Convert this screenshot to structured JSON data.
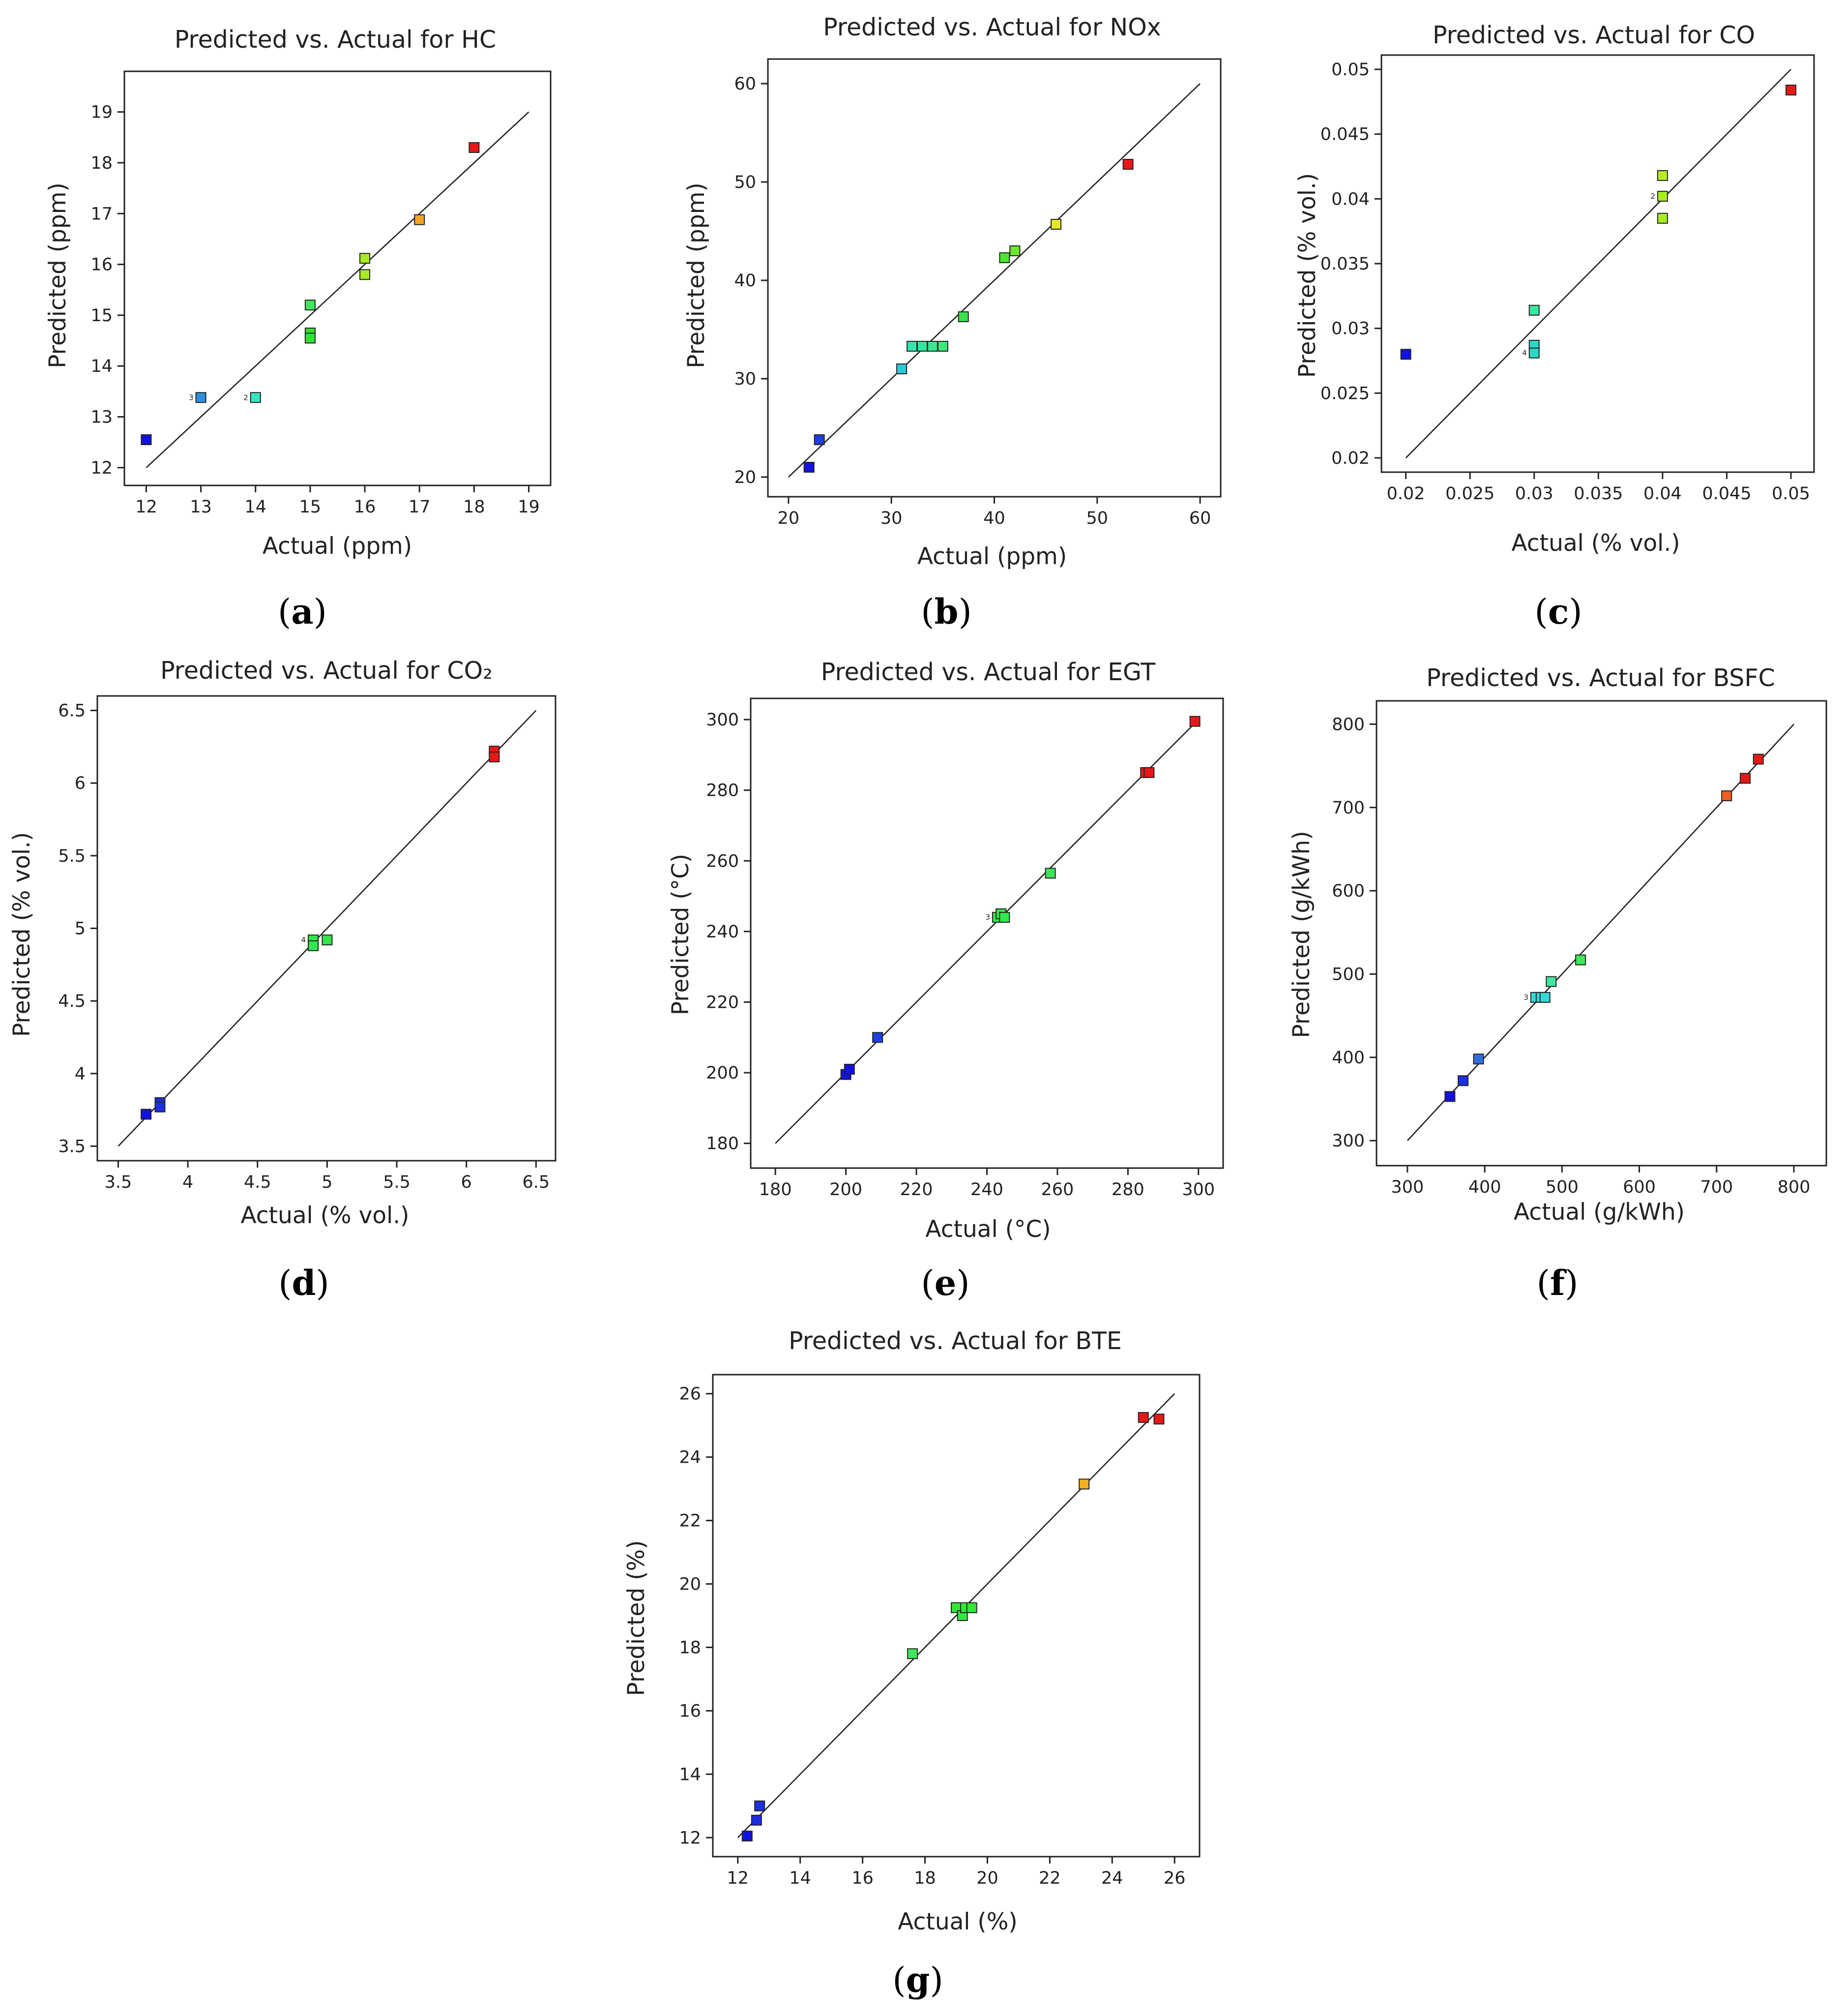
{
  "chart_data": [
    {
      "id": "a",
      "type": "scatter",
      "title": "Predicted vs. Actual for HC",
      "xlabel": "Actual (ppm)",
      "ylabel": "Predicted (ppm)",
      "panel_letter": "a",
      "xlim": [
        11.6,
        19.4
      ],
      "ylim": [
        11.65,
        19.8
      ],
      "xticks": [
        12,
        13,
        14,
        15,
        16,
        17,
        18,
        19
      ],
      "yticks": [
        12,
        13,
        14,
        15,
        16,
        17,
        18,
        19
      ],
      "xtick_labels": [
        "12",
        "13",
        "14",
        "15",
        "16",
        "17",
        "18",
        "19"
      ],
      "ytick_labels": [
        "12",
        "13",
        "14",
        "15",
        "16",
        "17",
        "18",
        "19"
      ],
      "reference_line": [
        12,
        19
      ],
      "points": [
        {
          "x": 12,
          "y": 12.55,
          "color": "#1212e0"
        },
        {
          "x": 13,
          "y": 13.38,
          "color": "#2f8ee0",
          "annotation": "3"
        },
        {
          "x": 14,
          "y": 13.38,
          "color": "#33e6c0",
          "annotation": "2"
        },
        {
          "x": 15,
          "y": 15.2,
          "color": "#3fe65a"
        },
        {
          "x": 15,
          "y": 14.65,
          "color": "#2fe32f"
        },
        {
          "x": 15,
          "y": 14.55,
          "color": "#2fe32f"
        },
        {
          "x": 16,
          "y": 16.12,
          "color": "#a8ec22"
        },
        {
          "x": 16,
          "y": 15.8,
          "color": "#a8ec22"
        },
        {
          "x": 17,
          "y": 16.88,
          "color": "#f2a521"
        },
        {
          "x": 18,
          "y": 18.3,
          "color": "#e81818"
        }
      ]
    },
    {
      "id": "b",
      "type": "scatter",
      "title": "Predicted vs. Actual for NOx",
      "xlabel": "Actual (ppm)",
      "ylabel": "Predicted (ppm)",
      "panel_letter": "b",
      "xlim": [
        18,
        62
      ],
      "ylim": [
        18,
        62.5
      ],
      "xticks": [
        20,
        30,
        40,
        50,
        60
      ],
      "yticks": [
        20,
        30,
        40,
        50,
        60
      ],
      "xtick_labels": [
        "20",
        "30",
        "40",
        "50",
        "60"
      ],
      "ytick_labels": [
        "20",
        "30",
        "40",
        "50",
        "60"
      ],
      "reference_line": [
        20,
        60
      ],
      "points": [
        {
          "x": 22,
          "y": 21,
          "color": "#1212e0"
        },
        {
          "x": 23,
          "y": 23.8,
          "color": "#1d3fe0"
        },
        {
          "x": 31,
          "y": 31,
          "color": "#2bc8d8"
        },
        {
          "x": 32,
          "y": 33.3,
          "color": "#33e6b0"
        },
        {
          "x": 33,
          "y": 33.3,
          "color": "#33e6a0"
        },
        {
          "x": 34,
          "y": 33.3,
          "color": "#3ae690"
        },
        {
          "x": 35,
          "y": 33.3,
          "color": "#3fe67a"
        },
        {
          "x": 37,
          "y": 36.3,
          "color": "#38e34a"
        },
        {
          "x": 41,
          "y": 42.3,
          "color": "#4ce632"
        },
        {
          "x": 42,
          "y": 43,
          "color": "#6ee62a"
        },
        {
          "x": 46,
          "y": 45.7,
          "color": "#e2e822"
        },
        {
          "x": 53,
          "y": 51.8,
          "color": "#e81818"
        }
      ]
    },
    {
      "id": "c",
      "type": "scatter",
      "title": "Predicted vs. Actual for CO",
      "xlabel": "Actual (% vol.)",
      "ylabel": "Predicted (% vol.)",
      "panel_letter": "c",
      "xlim": [
        0.0181,
        0.0518
      ],
      "ylim": [
        0.0189,
        0.0511
      ],
      "xticks": [
        0.02,
        0.025,
        0.03,
        0.035,
        0.04,
        0.045,
        0.05
      ],
      "yticks": [
        0.02,
        0.025,
        0.03,
        0.035,
        0.04,
        0.045,
        0.05
      ],
      "xtick_labels": [
        "0.02",
        "0.025",
        "0.03",
        "0.035",
        "0.04",
        "0.045",
        "0.05"
      ],
      "ytick_labels": [
        "0.02",
        "0.025",
        "0.03",
        "0.035",
        "0.04",
        "0.045",
        "0.05"
      ],
      "reference_line": [
        0.02,
        0.05
      ],
      "points": [
        {
          "x": 0.02,
          "y": 0.028,
          "color": "#1212e0"
        },
        {
          "x": 0.03,
          "y": 0.0314,
          "color": "#3be6a0"
        },
        {
          "x": 0.03,
          "y": 0.0287,
          "color": "#2bd8c8"
        },
        {
          "x": 0.03,
          "y": 0.0281,
          "color": "#2bd8c8",
          "annotation": "4"
        },
        {
          "x": 0.04,
          "y": 0.0418,
          "color": "#b8ec22"
        },
        {
          "x": 0.04,
          "y": 0.0402,
          "color": "#a8ec22",
          "annotation": "2"
        },
        {
          "x": 0.04,
          "y": 0.0385,
          "color": "#a8ec22"
        },
        {
          "x": 0.05,
          "y": 0.0484,
          "color": "#e81818"
        }
      ]
    },
    {
      "id": "d",
      "type": "scatter",
      "title": "Predicted vs. Actual for CO₂",
      "xlabel": "Actual (% vol.)",
      "ylabel": "Predicted (% vol.)",
      "panel_letter": "d",
      "xlim": [
        3.35,
        6.64
      ],
      "ylim": [
        3.4,
        6.6
      ],
      "xticks": [
        3.5,
        4,
        4.5,
        5,
        5.5,
        6,
        6.5
      ],
      "yticks": [
        3.5,
        4,
        4.5,
        5,
        5.5,
        6,
        6.5
      ],
      "xtick_labels": [
        "3.5",
        "4",
        "4.5",
        "5",
        "5.5",
        "6",
        "6.5"
      ],
      "ytick_labels": [
        "3.5",
        "4",
        "4.5",
        "5",
        "5.5",
        "6",
        "6.5"
      ],
      "reference_line": [
        3.5,
        6.5
      ],
      "points": [
        {
          "x": 3.7,
          "y": 3.72,
          "color": "#1212e0"
        },
        {
          "x": 3.8,
          "y": 3.8,
          "color": "#1d2fe0"
        },
        {
          "x": 3.8,
          "y": 3.77,
          "color": "#1d2fe0"
        },
        {
          "x": 4.9,
          "y": 4.92,
          "color": "#33e64a",
          "annotation": "4"
        },
        {
          "x": 4.9,
          "y": 4.88,
          "color": "#33e64a"
        },
        {
          "x": 5.0,
          "y": 4.92,
          "color": "#33e64a"
        },
        {
          "x": 6.2,
          "y": 6.22,
          "color": "#e81818"
        },
        {
          "x": 6.2,
          "y": 6.18,
          "color": "#e81818"
        }
      ]
    },
    {
      "id": "e",
      "type": "scatter",
      "title": "Predicted vs. Actual for EGT",
      "xlabel": "Actual (°C)",
      "ylabel": "Predicted (°C)",
      "panel_letter": "e",
      "xlim": [
        173,
        307
      ],
      "ylim": [
        173,
        306
      ],
      "xticks": [
        180,
        200,
        220,
        240,
        260,
        280,
        300
      ],
      "yticks": [
        180,
        200,
        220,
        240,
        260,
        280,
        300
      ],
      "xtick_labels": [
        "180",
        "200",
        "220",
        "240",
        "260",
        "280",
        "300"
      ],
      "ytick_labels": [
        "180",
        "200",
        "220",
        "240",
        "260",
        "280",
        "300"
      ],
      "reference_line": [
        180,
        300
      ],
      "points": [
        {
          "x": 200,
          "y": 199.5,
          "color": "#1212e0"
        },
        {
          "x": 201,
          "y": 201,
          "color": "#1212e0"
        },
        {
          "x": 209,
          "y": 210,
          "color": "#1d3fe0"
        },
        {
          "x": 243,
          "y": 244,
          "color": "#33e64a",
          "annotation": "3"
        },
        {
          "x": 244,
          "y": 245,
          "color": "#33e64a"
        },
        {
          "x": 245,
          "y": 244,
          "color": "#33e64a"
        },
        {
          "x": 258,
          "y": 256.5,
          "color": "#3fe65a"
        },
        {
          "x": 285,
          "y": 285,
          "color": "#e81818"
        },
        {
          "x": 286,
          "y": 285,
          "color": "#e81818"
        },
        {
          "x": 299,
          "y": 299.5,
          "color": "#e81818"
        }
      ]
    },
    {
      "id": "f",
      "type": "scatter",
      "title": "Predicted vs. Actual for BSFC",
      "xlabel": "Actual (g/kWh)",
      "ylabel": "Predicted (g/kWh)",
      "panel_letter": "f",
      "xlim": [
        260,
        842
      ],
      "ylim": [
        270,
        828
      ],
      "xticks": [
        300,
        400,
        500,
        600,
        700,
        800
      ],
      "yticks": [
        300,
        400,
        500,
        600,
        700,
        800
      ],
      "xtick_labels": [
        "300",
        "400",
        "500",
        "600",
        "700",
        "800"
      ],
      "ytick_labels": [
        "300",
        "400",
        "500",
        "600",
        "700",
        "800"
      ],
      "reference_line": [
        300,
        800
      ],
      "points": [
        {
          "x": 355,
          "y": 353,
          "color": "#1212e0"
        },
        {
          "x": 372,
          "y": 372,
          "color": "#1d2fe0"
        },
        {
          "x": 392,
          "y": 398,
          "color": "#2f6ee0"
        },
        {
          "x": 466,
          "y": 472,
          "color": "#33d8d8",
          "annotation": "3"
        },
        {
          "x": 473,
          "y": 472,
          "color": "#33d8d8"
        },
        {
          "x": 478,
          "y": 472,
          "color": "#33d8d8"
        },
        {
          "x": 486,
          "y": 491,
          "color": "#3fe6a0"
        },
        {
          "x": 524,
          "y": 517,
          "color": "#3fe65a"
        },
        {
          "x": 713,
          "y": 714,
          "color": "#f25c21"
        },
        {
          "x": 737,
          "y": 735,
          "color": "#e81818"
        },
        {
          "x": 754,
          "y": 758,
          "color": "#e81818"
        }
      ]
    },
    {
      "id": "g",
      "type": "scatter",
      "title": "Predicted vs. Actual for BTE",
      "xlabel": "Actual (%)",
      "ylabel": "Predicted (%)",
      "panel_letter": "g",
      "xlim": [
        11.2,
        26.8
      ],
      "ylim": [
        11.4,
        26.6
      ],
      "xticks": [
        12,
        14,
        16,
        18,
        20,
        22,
        24,
        26
      ],
      "yticks": [
        12,
        14,
        16,
        18,
        20,
        22,
        24,
        26
      ],
      "xtick_labels": [
        "12",
        "14",
        "16",
        "18",
        "20",
        "22",
        "24",
        "26"
      ],
      "ytick_labels": [
        "12",
        "14",
        "16",
        "18",
        "20",
        "22",
        "24",
        "26"
      ],
      "reference_line": [
        12,
        26
      ],
      "points": [
        {
          "x": 12.3,
          "y": 12.05,
          "color": "#1212e0"
        },
        {
          "x": 12.6,
          "y": 12.55,
          "color": "#1d2fe0"
        },
        {
          "x": 12.7,
          "y": 13.0,
          "color": "#1d2fe0"
        },
        {
          "x": 17.6,
          "y": 17.8,
          "color": "#3fe65a"
        },
        {
          "x": 19.0,
          "y": 19.25,
          "color": "#33e63a"
        },
        {
          "x": 19.2,
          "y": 19.0,
          "color": "#33e63a"
        },
        {
          "x": 19.3,
          "y": 19.25,
          "color": "#33e63a"
        },
        {
          "x": 19.5,
          "y": 19.25,
          "color": "#33e63a"
        },
        {
          "x": 23.1,
          "y": 23.15,
          "color": "#f2b221"
        },
        {
          "x": 25.0,
          "y": 25.25,
          "color": "#e81818"
        },
        {
          "x": 25.5,
          "y": 25.2,
          "color": "#e81818"
        }
      ]
    }
  ]
}
